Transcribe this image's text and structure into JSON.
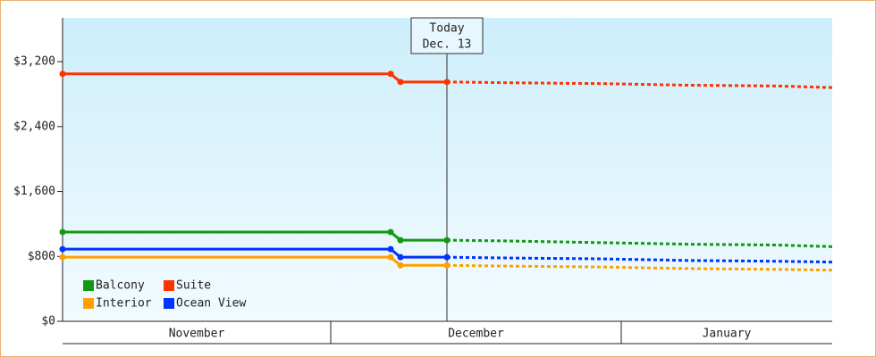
{
  "chart_data": {
    "type": "line",
    "xlim": [
      0,
      86.1
    ],
    "ylim": [
      0,
      3740
    ],
    "yticks": [
      {
        "value": 0,
        "label": "$0"
      },
      {
        "value": 800,
        "label": "$800"
      },
      {
        "value": 1600,
        "label": "$1,600"
      },
      {
        "value": 2400,
        "label": "$2,400"
      },
      {
        "value": 3200,
        "label": "$3,200"
      }
    ],
    "months": [
      {
        "label": "November",
        "start": 0,
        "end": 30
      },
      {
        "label": "December",
        "start": 30,
        "end": 62.5
      },
      {
        "label": "January",
        "start": 62.5,
        "end": 86.1
      }
    ],
    "today": {
      "x": 43,
      "label": "Today",
      "date": "Dec. 13"
    },
    "x": [
      0,
      36.7,
      37.8,
      43
    ],
    "forecast_x": [
      43,
      50,
      60,
      70,
      80,
      86.1
    ],
    "series": [
      {
        "name": "Balcony",
        "color": "#119911",
        "values": [
          1100,
          1100,
          1000,
          1000
        ],
        "forecast_values": [
          1000,
          990,
          970,
          950,
          940,
          920
        ]
      },
      {
        "name": "Suite",
        "color": "#ff3300",
        "values": [
          3050,
          3050,
          2950,
          2950
        ],
        "forecast_values": [
          2950,
          2940,
          2930,
          2910,
          2900,
          2880
        ]
      },
      {
        "name": "Interior",
        "color": "#ffa000",
        "values": [
          790,
          790,
          690,
          690
        ],
        "forecast_values": [
          690,
          680,
          670,
          650,
          640,
          630
        ]
      },
      {
        "name": "Ocean View",
        "color": "#0033ff",
        "values": [
          890,
          890,
          790,
          790
        ],
        "forecast_values": [
          790,
          780,
          770,
          750,
          740,
          730
        ]
      }
    ]
  }
}
